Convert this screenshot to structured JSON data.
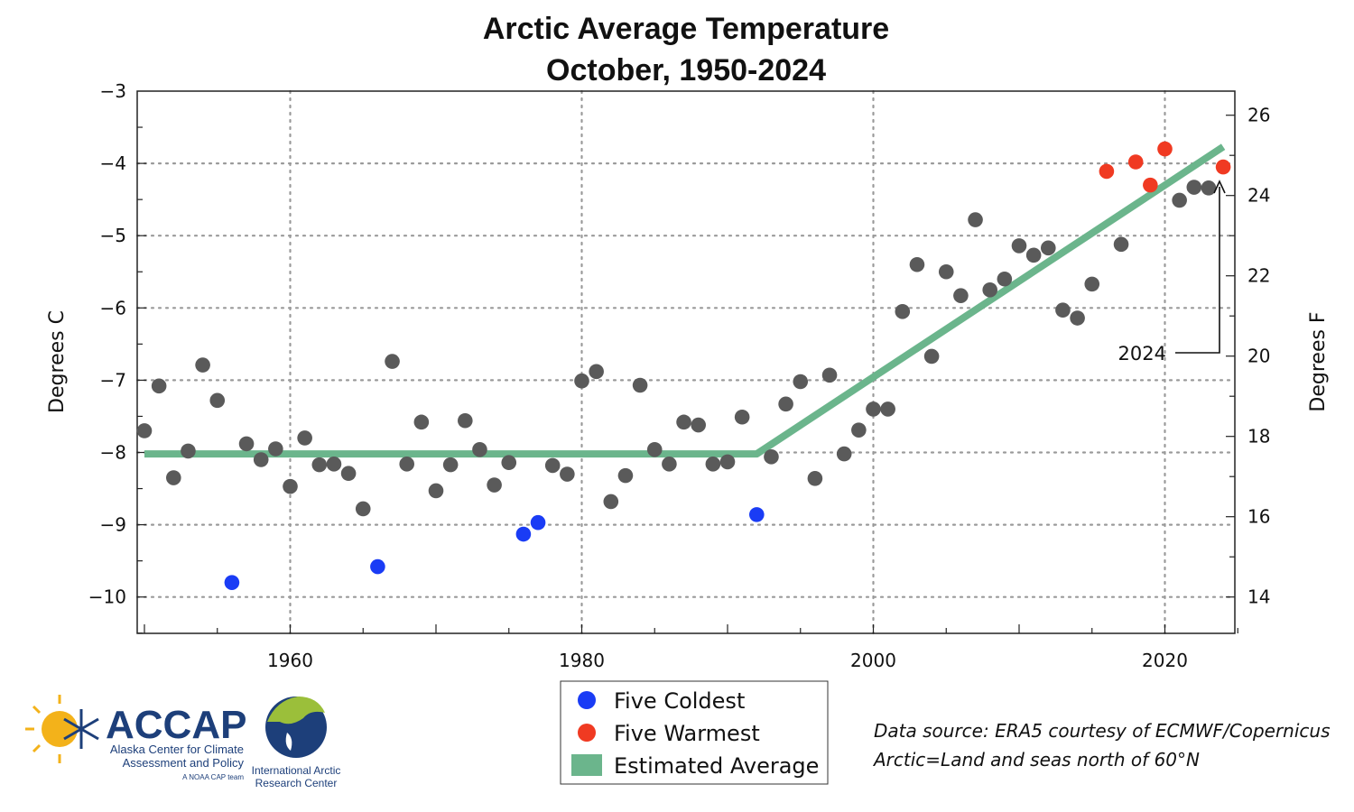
{
  "chart_data": {
    "type": "scatter",
    "title_lines": [
      "Arctic Average Temperature",
      "October, 1950-2024"
    ],
    "ylabel": "Degrees C",
    "ylabel_right": "Degrees F",
    "xlim": [
      1950,
      2025
    ],
    "ylim": [
      -10.5,
      -3
    ],
    "ylim_right_f": [
      13.1,
      26.6
    ],
    "x_ticks": [
      1960,
      1980,
      2000,
      2020
    ],
    "y_ticks": [
      -3,
      -4,
      -5,
      -6,
      -7,
      -8,
      -9,
      -10
    ],
    "y_tick_labels": [
      "−3",
      "−4",
      "−5",
      "−6",
      "−7",
      "−8",
      "−9",
      "−10"
    ],
    "y_right_ticks": [
      14,
      16,
      18,
      20,
      22,
      24,
      26
    ],
    "grid": true,
    "colors": {
      "normal": "#5a5a5a",
      "coldest": "#1a3cf5",
      "warmest": "#f03a22",
      "average": "#6bb58c"
    },
    "points": [
      {
        "x": 1950,
        "y": -7.7,
        "cat": "normal"
      },
      {
        "x": 1951,
        "y": -7.08,
        "cat": "normal"
      },
      {
        "x": 1952,
        "y": -8.35,
        "cat": "normal"
      },
      {
        "x": 1953,
        "y": -7.98,
        "cat": "normal"
      },
      {
        "x": 1954,
        "y": -6.79,
        "cat": "normal"
      },
      {
        "x": 1955,
        "y": -7.28,
        "cat": "normal"
      },
      {
        "x": 1956,
        "y": -9.8,
        "cat": "coldest"
      },
      {
        "x": 1957,
        "y": -7.88,
        "cat": "normal"
      },
      {
        "x": 1958,
        "y": -8.1,
        "cat": "normal"
      },
      {
        "x": 1959,
        "y": -7.95,
        "cat": "normal"
      },
      {
        "x": 1960,
        "y": -8.47,
        "cat": "normal"
      },
      {
        "x": 1961,
        "y": -7.8,
        "cat": "normal"
      },
      {
        "x": 1962,
        "y": -8.17,
        "cat": "normal"
      },
      {
        "x": 1963,
        "y": -8.16,
        "cat": "normal"
      },
      {
        "x": 1964,
        "y": -8.29,
        "cat": "normal"
      },
      {
        "x": 1965,
        "y": -8.78,
        "cat": "normal"
      },
      {
        "x": 1966,
        "y": -9.58,
        "cat": "coldest"
      },
      {
        "x": 1967,
        "y": -6.74,
        "cat": "normal"
      },
      {
        "x": 1968,
        "y": -8.16,
        "cat": "normal"
      },
      {
        "x": 1969,
        "y": -7.58,
        "cat": "normal"
      },
      {
        "x": 1970,
        "y": -8.53,
        "cat": "normal"
      },
      {
        "x": 1971,
        "y": -8.17,
        "cat": "normal"
      },
      {
        "x": 1972,
        "y": -7.56,
        "cat": "normal"
      },
      {
        "x": 1973,
        "y": -7.96,
        "cat": "normal"
      },
      {
        "x": 1974,
        "y": -8.45,
        "cat": "normal"
      },
      {
        "x": 1975,
        "y": -8.14,
        "cat": "normal"
      },
      {
        "x": 1976,
        "y": -9.13,
        "cat": "coldest"
      },
      {
        "x": 1977,
        "y": -8.97,
        "cat": "coldest"
      },
      {
        "x": 1978,
        "y": -8.18,
        "cat": "normal"
      },
      {
        "x": 1979,
        "y": -8.3,
        "cat": "normal"
      },
      {
        "x": 1980,
        "y": -7.01,
        "cat": "normal"
      },
      {
        "x": 1981,
        "y": -6.88,
        "cat": "normal"
      },
      {
        "x": 1982,
        "y": -8.68,
        "cat": "normal"
      },
      {
        "x": 1983,
        "y": -8.32,
        "cat": "normal"
      },
      {
        "x": 1984,
        "y": -7.07,
        "cat": "normal"
      },
      {
        "x": 1985,
        "y": -7.96,
        "cat": "normal"
      },
      {
        "x": 1986,
        "y": -8.16,
        "cat": "normal"
      },
      {
        "x": 1987,
        "y": -7.58,
        "cat": "normal"
      },
      {
        "x": 1988,
        "y": -7.62,
        "cat": "normal"
      },
      {
        "x": 1989,
        "y": -8.16,
        "cat": "normal"
      },
      {
        "x": 1990,
        "y": -8.13,
        "cat": "normal"
      },
      {
        "x": 1991,
        "y": -7.51,
        "cat": "normal"
      },
      {
        "x": 1992,
        "y": -8.86,
        "cat": "coldest"
      },
      {
        "x": 1993,
        "y": -8.06,
        "cat": "normal"
      },
      {
        "x": 1994,
        "y": -7.33,
        "cat": "normal"
      },
      {
        "x": 1995,
        "y": -7.02,
        "cat": "normal"
      },
      {
        "x": 1996,
        "y": -8.36,
        "cat": "normal"
      },
      {
        "x": 1997,
        "y": -6.93,
        "cat": "normal"
      },
      {
        "x": 1998,
        "y": -8.02,
        "cat": "normal"
      },
      {
        "x": 1999,
        "y": -7.69,
        "cat": "normal"
      },
      {
        "x": 2000,
        "y": -7.4,
        "cat": "normal"
      },
      {
        "x": 2001,
        "y": -7.4,
        "cat": "normal"
      },
      {
        "x": 2002,
        "y": -6.05,
        "cat": "normal"
      },
      {
        "x": 2003,
        "y": -5.4,
        "cat": "normal"
      },
      {
        "x": 2004,
        "y": -6.67,
        "cat": "normal"
      },
      {
        "x": 2005,
        "y": -5.5,
        "cat": "normal"
      },
      {
        "x": 2006,
        "y": -5.83,
        "cat": "normal"
      },
      {
        "x": 2007,
        "y": -4.78,
        "cat": "normal"
      },
      {
        "x": 2008,
        "y": -5.75,
        "cat": "normal"
      },
      {
        "x": 2009,
        "y": -5.6,
        "cat": "normal"
      },
      {
        "x": 2010,
        "y": -5.14,
        "cat": "normal"
      },
      {
        "x": 2011,
        "y": -5.27,
        "cat": "normal"
      },
      {
        "x": 2012,
        "y": -5.17,
        "cat": "normal"
      },
      {
        "x": 2013,
        "y": -6.03,
        "cat": "normal"
      },
      {
        "x": 2014,
        "y": -6.14,
        "cat": "normal"
      },
      {
        "x": 2015,
        "y": -5.67,
        "cat": "normal"
      },
      {
        "x": 2016,
        "y": -4.11,
        "cat": "warmest"
      },
      {
        "x": 2017,
        "y": -5.12,
        "cat": "normal"
      },
      {
        "x": 2018,
        "y": -3.98,
        "cat": "warmest"
      },
      {
        "x": 2019,
        "y": -4.3,
        "cat": "warmest"
      },
      {
        "x": 2020,
        "y": -3.8,
        "cat": "warmest"
      },
      {
        "x": 2021,
        "y": -4.51,
        "cat": "normal"
      },
      {
        "x": 2022,
        "y": -4.33,
        "cat": "normal"
      },
      {
        "x": 2023,
        "y": -4.34,
        "cat": "normal"
      },
      {
        "x": 2024,
        "y": -4.05,
        "cat": "warmest"
      }
    ],
    "average_line": [
      {
        "x": 1950,
        "y": -8.02
      },
      {
        "x": 1992,
        "y": -8.02
      },
      {
        "x": 2024,
        "y": -3.77
      }
    ],
    "annotation": {
      "text": "2024",
      "x": 2024,
      "y": -4.05
    },
    "legend": {
      "placement": "bottom-center",
      "entries": [
        {
          "label": "Five Coldest",
          "cat": "coldest",
          "shape": "circle"
        },
        {
          "label": "Five Warmest",
          "cat": "warmest",
          "shape": "circle"
        },
        {
          "label": "Estimated Average",
          "cat": "average",
          "shape": "square"
        }
      ]
    },
    "source_lines": [
      "Data source: ERA5 courtesy of ECMWF/Copernicus",
      "Arctic=Land and seas north of 60°N"
    ]
  },
  "logos": {
    "accap_name": "ACCAP",
    "accap_line1": "Alaska Center for Climate",
    "accap_line2": "Assessment and Policy",
    "accap_tag": "A NOAA CAP team",
    "iarc_line1": "International Arctic",
    "iarc_line2": "Research Center"
  }
}
